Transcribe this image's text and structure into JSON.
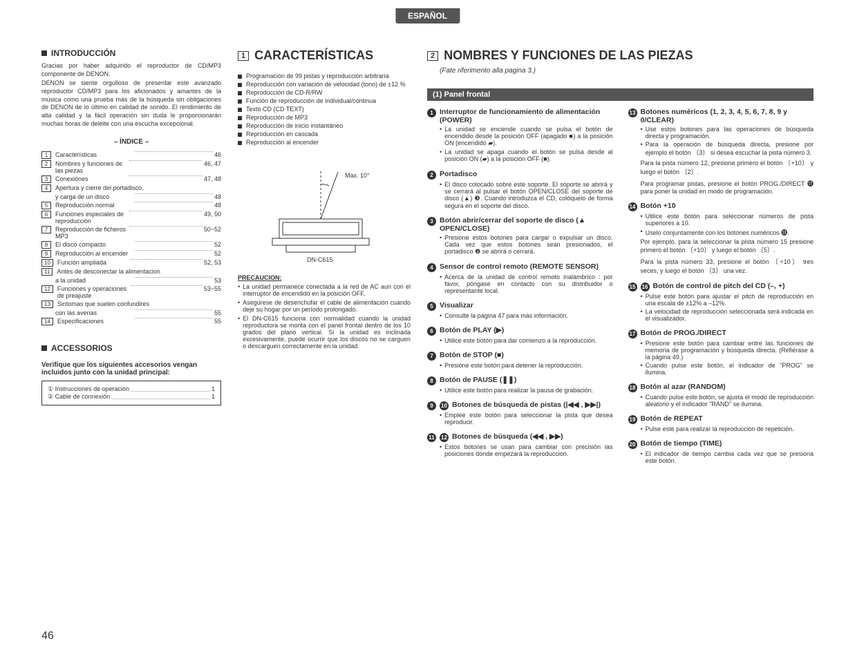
{
  "lang_tab": "ESPAÑOL",
  "page_number": "46",
  "intro": {
    "heading": "INTRODUCCIÓN",
    "p1": "Gracias por haber adquirido el reproductor de CD/MP3 componente de DENON.",
    "p2": "DENON se siente orgulloso de presentar este avanzado reproductor CD/MP3 para los aficionados y amantes de la música como una prueba más de la búsqueda sin obligaciones de DENON de lo último en calidad de sonido. El rendimiento de alta calidad y la fácil operación sin duda le proporcionarán muchas horas de deleite con una escucha excepcional."
  },
  "indice": {
    "title": "– ÍNDICE –",
    "rows": [
      {
        "n": "1",
        "label": "Características",
        "pg": "46"
      },
      {
        "n": "2",
        "label": "Nombres y funciones de las piezas",
        "pg": "46, 47"
      },
      {
        "n": "3",
        "label": "Conexiónes",
        "pg": "47, 48"
      },
      {
        "n": "4",
        "label": "Apertura y cierre del portadisco,",
        "pg": ""
      },
      {
        "n": "",
        "label": "y carga de un disco",
        "pg": "48"
      },
      {
        "n": "5",
        "label": "Reproducción normal",
        "pg": "48"
      },
      {
        "n": "6",
        "label": "Funciones especiales de reproducción",
        "pg": "49, 50"
      },
      {
        "n": "7",
        "label": "Reproducción de ficheros MP3",
        "pg": "50~52"
      },
      {
        "n": "8",
        "label": "El disco compacto",
        "pg": "52"
      },
      {
        "n": "9",
        "label": "Reproducción al encender",
        "pg": "52"
      },
      {
        "n": "10",
        "label": "Función ampliada",
        "pg": "52, 53"
      },
      {
        "n": "11",
        "label": "Antes de desconectar la alimentacion",
        "pg": ""
      },
      {
        "n": "",
        "label": "a la unidad",
        "pg": "53"
      },
      {
        "n": "12",
        "label": "Funciones y operaciones de preajuste",
        "pg": "53~55"
      },
      {
        "n": "13",
        "label": "Sintomas que suelen confundires",
        "pg": ""
      },
      {
        "n": "",
        "label": "con las averias",
        "pg": "55"
      },
      {
        "n": "14",
        "label": "Especificaciones",
        "pg": "55"
      }
    ]
  },
  "accessorios": {
    "heading": "ACCESSORIOS",
    "sub": "Verifique que los siguientes accesorios vengan incluidos junto con la unidad principal:",
    "lines": [
      {
        "n": "①",
        "label": "Instrucciones de operación",
        "qty": "1"
      },
      {
        "n": "②",
        "label": "Cable de connexión",
        "qty": "1"
      }
    ]
  },
  "caracteristicas": {
    "num": "1",
    "heading": "CARACTERÍSTICAS",
    "items": [
      "Programación de 99 pistas y reproducción arbitraria",
      "Reproducción con variación de velocidad (tono) de ±12 %",
      "Reproducción de CD-R/RW",
      "Función de reproducción de individual/continua",
      "Texto CD (CD TEXT)",
      "Reproducción de MP3",
      "Reproducción de inicio instantáneo",
      "Reproducción en cascada",
      "Reproducción al encender"
    ],
    "diagram": {
      "angle": "Max. 10°",
      "model": "DN-C615"
    }
  },
  "precaucion": {
    "title": "PRECAUCION:",
    "items": [
      "La unidad permanece conectada a la red de AC aun con el interruptor de encendido en la posición OFF.",
      "Asegúrese de desenchufar el cable de alimentación cuando deje su hogar por un período prolongado.",
      "El DN-C615 funciona con normalidad cuando la unidad reproductora se monta con el panel frontal dentro de los 10 grados del plano vertical. Si la unidad es inclinada excesivamente, puede ocurrir que los discos no se carguen o descarguen correctamente en la unidad."
    ]
  },
  "nombres": {
    "num": "2",
    "heading": "NOMBRES Y FUNCIONES DE LAS PIEZAS",
    "sub": "(Fate riferimento alla pagina 3.)",
    "panel": "(1) Panel frontal"
  },
  "left_items": [
    {
      "c": [
        "1"
      ],
      "t": "Interruptor de funcionamiento de alimentación (POWER)",
      "b": [
        "La unidad se enciende cuando se pulsa el botón de encendido desde la posición OFF (apagado ■) a la posición ON (encendido ▰).",
        "La unidad se apaga cuando el botón se pulsa desde al posición ON (▰) a la posición OFF (■)."
      ]
    },
    {
      "c": [
        "2"
      ],
      "t": "Portadisco",
      "b": [
        "El disco colocado sobre este soporte. El soporte se abrirá y se cerrará al pulsar el botón OPEN/CLOSE del soporte de disco (▲) ❸. Cuando introduzca el CD, colóquelo de forma segura en el soporte del disco."
      ]
    },
    {
      "c": [
        "3"
      ],
      "t": "Botón abrir/cerrar del soporte de disco (▲ OPEN/CLOSE)",
      "b": [
        "Presione estos botones para cargar o expulsar un disco. Cada vez que estos botones sean presionados, el portadisco ❷ se abrirá o cerrará."
      ]
    },
    {
      "c": [
        "4"
      ],
      "t": "Sensor de control remoto (REMOTE SENSOR)",
      "b": [
        "Acerca de la unidad de control remoto inalámbrico : por favor, póngase en contacto con su distribuidor o representante local."
      ]
    },
    {
      "c": [
        "5"
      ],
      "t": "Visualizar",
      "b": [
        "Consulte la página 47 para más información."
      ]
    },
    {
      "c": [
        "6"
      ],
      "t": "Botón de PLAY (▶)",
      "b": [
        "Utilice este botón para dar comienzo a la reproducción."
      ]
    },
    {
      "c": [
        "7"
      ],
      "t": "Botón de STOP (■)",
      "b": [
        "Presione este botón para detener la reproducción."
      ]
    },
    {
      "c": [
        "8"
      ],
      "t": "Botón de PAUSE (❚❚)",
      "b": [
        "Utilice este botón para realizar la pausa de grabación."
      ]
    },
    {
      "c": [
        "9",
        "10"
      ],
      "t": "Botones de búsqueda de pistas (|◀◀ , ▶▶|)",
      "b": [
        "Emplee este botón para seleccionar la pista que desea reproducir."
      ]
    },
    {
      "c": [
        "11",
        "12"
      ],
      "t": "Botones de búsqueda (◀◀ , ▶▶)",
      "b": [
        "Estos botones se usan para cambiar con precisión las posiciones donde empezará la reproducción."
      ]
    }
  ],
  "right_items": [
    {
      "c": [
        "13"
      ],
      "t": "Botones numéricos (1, 2, 3, 4, 5, 6, 7, 8, 9 y 0/CLEAR)",
      "b": [
        "Use estos botones para las operaciones de búsqueda directa y programación.",
        "Para la operación de búsqueda directa, presione por ejemplo el botón 〔3〕 si desea escuchar la pista número 3."
      ],
      "extra": [
        "Para la pista número 12, presione primero el botón 〔+10〕 y luego el botón 〔2〕.",
        "Para programar pistas, presione el botón PROG./DIRECT ⓱ para poner la unidad en modo de programación."
      ]
    },
    {
      "c": [
        "14"
      ],
      "t": "Botón +10",
      "b": [
        "Utilice este botón para seleccionar números de pista superiores a 10.",
        "Uselo conjuntamente con los botones numéricos ⓭."
      ],
      "extra": [
        "Por ejemplo, para la seleccionar la pista número 15 presione primero el botón 〔+10〕 y luego el botón 〔5〕.",
        "Para la pista número 33, presione el botón 〔+10〕 tres veces, y luego el botón 〔3〕 una vez."
      ]
    },
    {
      "c": [
        "15",
        "16"
      ],
      "t": "Botón de control de pitch del CD (–, +)",
      "b": [
        "Pulse este botón para ajustar el pitch de reproducción en una escala de ±12% a –12%.",
        "La velocidad de reproducción seleccionada será indicada en el visualizador."
      ]
    },
    {
      "c": [
        "17"
      ],
      "t": "Botón de PROG./DIRECT",
      "b": [
        "Presione este botón para cambiar entre las funciones de memoria de programación y búsqueda directa. (Refiérase a la página 49.)",
        "Cuando pulse este botón, el indicador de \"PROG\" se ilumina."
      ]
    },
    {
      "c": [
        "18"
      ],
      "t": "Botón al azar (RANDOM)",
      "b": [
        "Cuando pulse este botón, se ajusta el modo de reproducción aleatorio y el indicador \"RAND\" se ilumina."
      ]
    },
    {
      "c": [
        "19"
      ],
      "t": "Botón de REPEAT",
      "b": [
        "Pulse este para realizar la reproducción de repetición."
      ]
    },
    {
      "c": [
        "20"
      ],
      "t": "Botón de tiempo (TIME)",
      "b": [
        "El indicador de tiempo cambia cada vez que se presiona este botón."
      ]
    }
  ]
}
